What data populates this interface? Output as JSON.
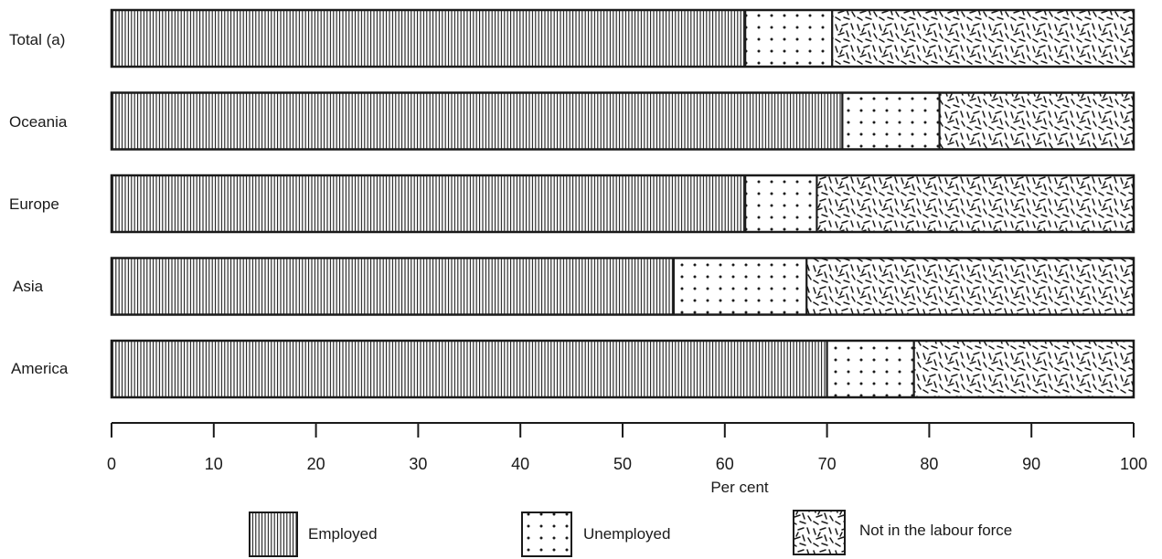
{
  "chart_data": {
    "type": "bar",
    "orientation": "horizontal",
    "stacked": true,
    "categories": [
      "Total (a)",
      "Oceania",
      "Europe",
      "Asia",
      "America"
    ],
    "series": [
      {
        "name": "Employed",
        "values": [
          62,
          71.5,
          62,
          55,
          70
        ],
        "pattern": "vertical-lines"
      },
      {
        "name": "Unemployed",
        "values": [
          8.5,
          9.5,
          7,
          13,
          8.5
        ],
        "pattern": "dots"
      },
      {
        "name": "Not in the labour force",
        "values": [
          29.5,
          19,
          31,
          32,
          21.5
        ],
        "pattern": "dashes"
      }
    ],
    "xlabel": "Per cent",
    "xlim": [
      0,
      100
    ],
    "xticks": [
      0,
      10,
      20,
      30,
      40,
      50,
      60,
      70,
      80,
      90,
      100
    ],
    "grid": false,
    "legend_position": "bottom"
  },
  "colors": {
    "ink": "#1a1a1a",
    "background": "#ffffff"
  }
}
